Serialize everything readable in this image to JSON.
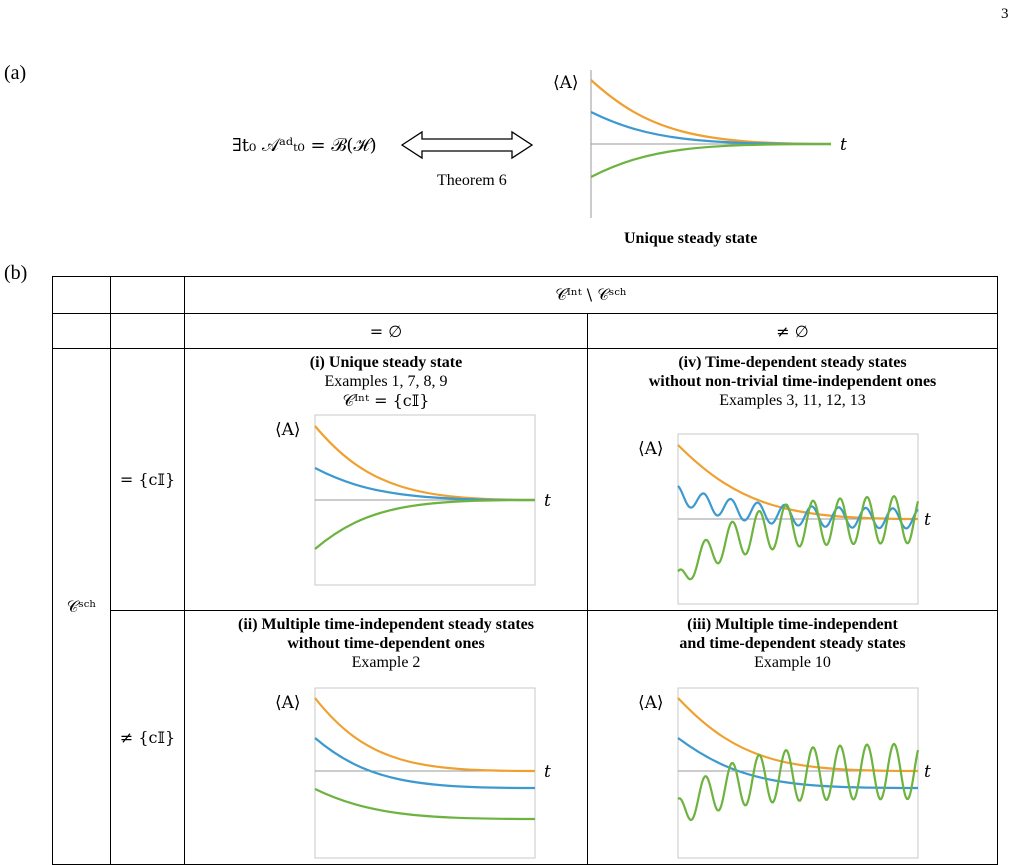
{
  "page_number": "3",
  "panel_a": {
    "label": "(a)",
    "equation": "∃t₀ 𝒜ᵃᵈₜ₀ = ℬ(ℋ)",
    "arrow_label": "Theorem 6",
    "y_label": "⟨A⟩",
    "x_label": "t",
    "caption": "Unique steady state"
  },
  "panel_b": {
    "label": "(b)",
    "col_header": "𝒞ᴵⁿᵗ \\ 𝒞ˢᶜʰ",
    "col_empty": "= ∅",
    "col_nonempty": "≠ ∅",
    "row_header": "𝒞ˢᶜʰ",
    "row_trivial": "= {c𝕀}",
    "row_nontrivial": "≠ {c𝕀}",
    "cells": {
      "i": {
        "title": "(i) Unique steady state",
        "examples": "Examples 1, 7, 8, 9",
        "extra": "𝒞ᴵⁿᵗ = {c𝕀}"
      },
      "iv": {
        "title1": "(iv) Time-dependent steady states",
        "title2": "without non-trivial time-independent ones",
        "examples": "Examples 3, 11, 12, 13"
      },
      "ii": {
        "title1": "(ii) Multiple time-independent steady states",
        "title2": "without time-dependent ones",
        "examples": "Example 2"
      },
      "iii": {
        "title1": "(iii) Multiple time-independent",
        "title2": "and time-dependent steady states",
        "examples": "Example 10"
      }
    }
  },
  "colors": {
    "orange": "#f0a030",
    "blue": "#3c9ad0",
    "green": "#6db33f",
    "axis": "#9a9a9a"
  }
}
